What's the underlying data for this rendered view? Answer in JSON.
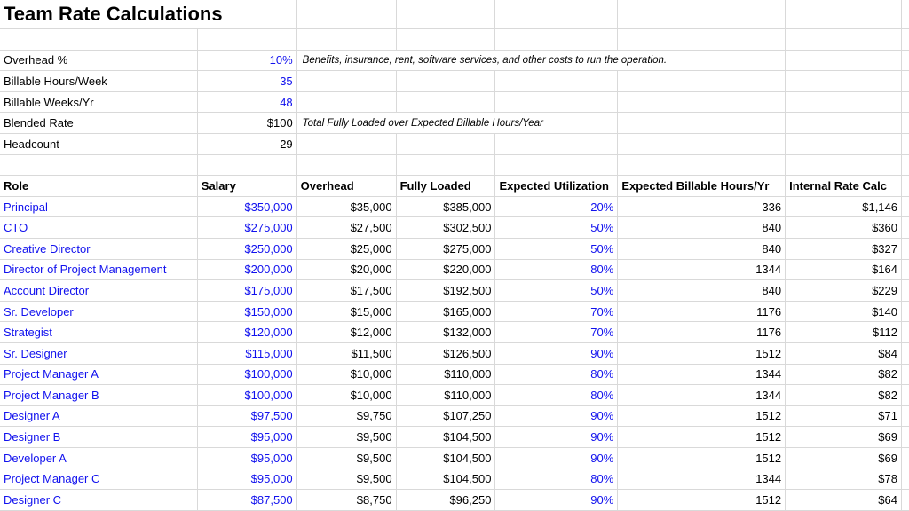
{
  "title": "Team Rate Calculations",
  "colors": {
    "accent": "#1111ee",
    "grid": "#d9d9d9",
    "text": "#000000",
    "bg": "#ffffff"
  },
  "parameters": [
    {
      "label": "Overhead %",
      "value": "10%",
      "note": "Benefits, insurance, rent, software services, and other costs to run the operation."
    },
    {
      "label": "Billable Hours/Week",
      "value": "35",
      "note": ""
    },
    {
      "label": "Billable Weeks/Yr",
      "value": "48",
      "note": ""
    },
    {
      "label": "Blended Rate",
      "value": "$100",
      "note": "Total Fully Loaded over Expected Billable Hours/Year"
    },
    {
      "label": "Headcount",
      "value": "29",
      "note": ""
    }
  ],
  "table": {
    "columns": [
      "Role",
      "Salary",
      "Overhead",
      "Fully Loaded",
      "Expected Utilization",
      "Expected Billable Hours/Yr",
      "Internal Rate Calc"
    ],
    "rows": [
      {
        "role": "Principal",
        "salary": "$350,000",
        "overhead": "$35,000",
        "fully_loaded": "$385,000",
        "utilization": "20%",
        "billable_hours": "336",
        "internal_rate": "$1,146"
      },
      {
        "role": "CTO",
        "salary": "$275,000",
        "overhead": "$27,500",
        "fully_loaded": "$302,500",
        "utilization": "50%",
        "billable_hours": "840",
        "internal_rate": "$360"
      },
      {
        "role": "Creative Director",
        "salary": "$250,000",
        "overhead": "$25,000",
        "fully_loaded": "$275,000",
        "utilization": "50%",
        "billable_hours": "840",
        "internal_rate": "$327"
      },
      {
        "role": "Director of Project Management",
        "salary": "$200,000",
        "overhead": "$20,000",
        "fully_loaded": "$220,000",
        "utilization": "80%",
        "billable_hours": "1344",
        "internal_rate": "$164"
      },
      {
        "role": "Account Director",
        "salary": "$175,000",
        "overhead": "$17,500",
        "fully_loaded": "$192,500",
        "utilization": "50%",
        "billable_hours": "840",
        "internal_rate": "$229"
      },
      {
        "role": "Sr. Developer",
        "salary": "$150,000",
        "overhead": "$15,000",
        "fully_loaded": "$165,000",
        "utilization": "70%",
        "billable_hours": "1176",
        "internal_rate": "$140"
      },
      {
        "role": "Strategist",
        "salary": "$120,000",
        "overhead": "$12,000",
        "fully_loaded": "$132,000",
        "utilization": "70%",
        "billable_hours": "1176",
        "internal_rate": "$112"
      },
      {
        "role": "Sr. Designer",
        "salary": "$115,000",
        "overhead": "$11,500",
        "fully_loaded": "$126,500",
        "utilization": "90%",
        "billable_hours": "1512",
        "internal_rate": "$84"
      },
      {
        "role": "Project Manager A",
        "salary": "$100,000",
        "overhead": "$10,000",
        "fully_loaded": "$110,000",
        "utilization": "80%",
        "billable_hours": "1344",
        "internal_rate": "$82"
      },
      {
        "role": "Project Manager B",
        "salary": "$100,000",
        "overhead": "$10,000",
        "fully_loaded": "$110,000",
        "utilization": "80%",
        "billable_hours": "1344",
        "internal_rate": "$82"
      },
      {
        "role": "Designer A",
        "salary": "$97,500",
        "overhead": "$9,750",
        "fully_loaded": "$107,250",
        "utilization": "90%",
        "billable_hours": "1512",
        "internal_rate": "$71"
      },
      {
        "role": "Designer B",
        "salary": "$95,000",
        "overhead": "$9,500",
        "fully_loaded": "$104,500",
        "utilization": "90%",
        "billable_hours": "1512",
        "internal_rate": "$69"
      },
      {
        "role": "Developer A",
        "salary": "$95,000",
        "overhead": "$9,500",
        "fully_loaded": "$104,500",
        "utilization": "90%",
        "billable_hours": "1512",
        "internal_rate": "$69"
      },
      {
        "role": "Project Manager C",
        "salary": "$95,000",
        "overhead": "$9,500",
        "fully_loaded": "$104,500",
        "utilization": "80%",
        "billable_hours": "1344",
        "internal_rate": "$78"
      },
      {
        "role": "Designer C",
        "salary": "$87,500",
        "overhead": "$8,750",
        "fully_loaded": "$96,250",
        "utilization": "90%",
        "billable_hours": "1512",
        "internal_rate": "$64"
      }
    ]
  }
}
